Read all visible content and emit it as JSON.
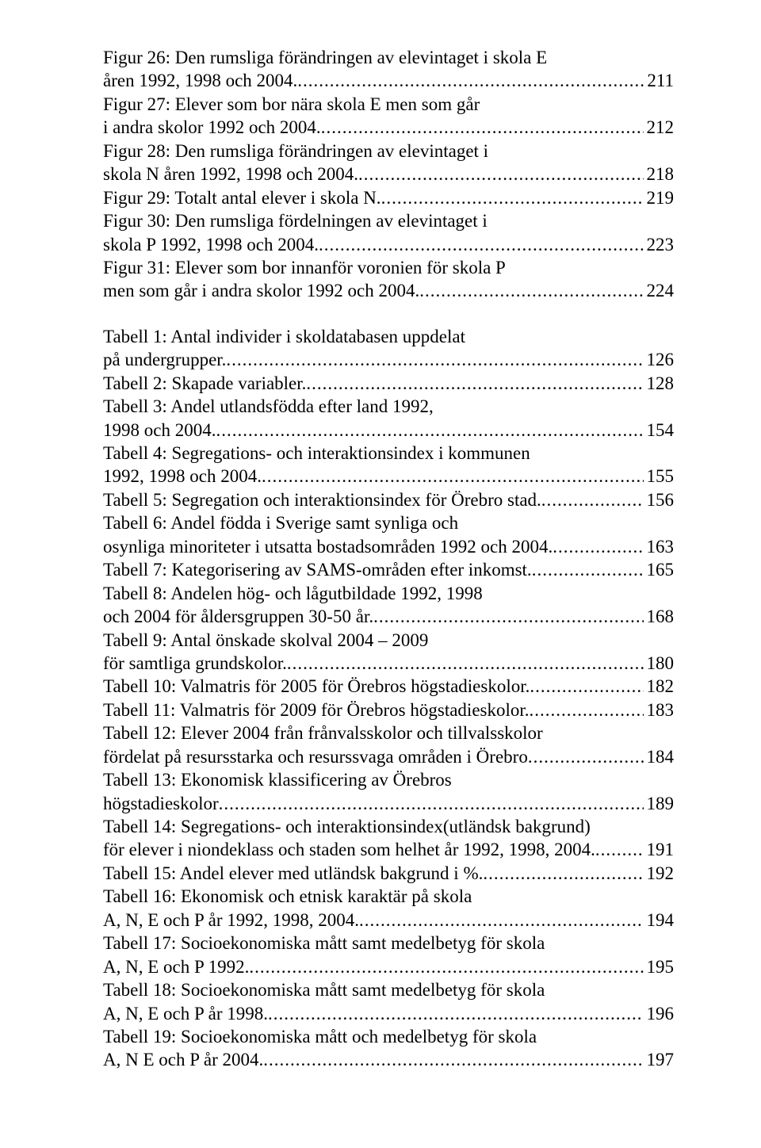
{
  "dots": "..............................................................................................................................",
  "entries": [
    {
      "lines": [
        "Figur 26: Den rumsliga förändringen av elevintaget i skola E",
        "åren 1992, 1998 och 2004."
      ],
      "page": "211"
    },
    {
      "lines": [
        "Figur 27: Elever som bor nära skola E men som går",
        "i andra skolor 1992 och 2004."
      ],
      "page": "212"
    },
    {
      "lines": [
        "Figur 28: Den rumsliga förändringen av elevintaget i",
        "skola N åren 1992, 1998 och 2004."
      ],
      "page": "218"
    },
    {
      "lines": [
        "Figur 29: Totalt antal elever i skola N."
      ],
      "page": "219"
    },
    {
      "lines": [
        "Figur 30: Den rumsliga fördelningen av elevintaget i",
        "skola P 1992, 1998 och 2004."
      ],
      "page": "223"
    },
    {
      "lines": [
        "Figur 31: Elever som bor innanför voronien för skola P",
        "men som går i andra skolor 1992 och 2004."
      ],
      "page": "224"
    },
    {
      "gap": true
    },
    {
      "lines": [
        "Tabell 1: Antal individer i skoldatabasen uppdelat",
        "på undergrupper."
      ],
      "page": "126"
    },
    {
      "lines": [
        "Tabell 2: Skapade variabler."
      ],
      "page": "128"
    },
    {
      "lines": [
        "Tabell 3: Andel utlandsfödda efter land 1992,",
        "1998 och 2004."
      ],
      "page": "154"
    },
    {
      "lines": [
        "Tabell 4: Segregations-  och interaktionsindex i kommunen",
        "1992, 1998 och 2004."
      ],
      "page": "155"
    },
    {
      "lines": [
        "Tabell 5: Segregation och interaktionsindex för Örebro stad. "
      ],
      "page": "156"
    },
    {
      "lines": [
        "Tabell 6: Andel födda i Sverige samt synliga och",
        "osynliga minoriteter i utsatta bostadsområden 1992 och 2004. "
      ],
      "page": "163"
    },
    {
      "lines": [
        "Tabell 7: Kategorisering av SAMS-områden efter inkomst."
      ],
      "page": "165"
    },
    {
      "lines": [
        "Tabell 8: Andelen hög- och lågutbildade 1992, 1998",
        "och 2004 för åldersgruppen 30-50 år."
      ],
      "page": "168"
    },
    {
      "lines": [
        "Tabell 9: Antal önskade skolval 2004 – 2009",
        "för samtliga grundskolor."
      ],
      "page": "180"
    },
    {
      "lines": [
        "Tabell 10: Valmatris för 2005 för Örebros högstadieskolor. "
      ],
      "page": "182"
    },
    {
      "lines": [
        "Tabell 11: Valmatris för 2009 för Örebros högstadieskolor. "
      ],
      "page": "183"
    },
    {
      "lines": [
        "Tabell 12: Elever 2004 från frånvalsskolor och tillvalsskolor",
        "fördelat på resursstarka och resurssvaga områden i Örebro "
      ],
      "page": "184"
    },
    {
      "lines": [
        "Tabell 13: Ekonomisk klassificering av Örebros",
        "högstadieskolor "
      ],
      "page": "189"
    },
    {
      "lines": [
        "Tabell 14: Segregations- och interaktionsindex(utländsk bakgrund)",
        "för elever i niondeklass och staden som helhet år 1992, 1998, 2004."
      ],
      "page": "191"
    },
    {
      "lines": [
        "Tabell 15: Andel elever med utländsk bakgrund i %."
      ],
      "page": "192"
    },
    {
      "lines": [
        "Tabell 16: Ekonomisk och etnisk karaktär på skola",
        "A, N, E och P år 1992, 1998, 2004."
      ],
      "page": "194"
    },
    {
      "lines": [
        "Tabell 17: Socioekonomiska mått samt medelbetyg för skola",
        "A, N, E och P 1992. "
      ],
      "page": "195"
    },
    {
      "lines": [
        "Tabell 18: Socioekonomiska mått samt medelbetyg för skola",
        "A, N, E och P år 1998. "
      ],
      "page": "196"
    },
    {
      "lines": [
        "Tabell 19: Socioekonomiska mått och medelbetyg för skola"
      ],
      "indentLast": true,
      "lastLine": " A, N E och P år 2004.",
      "page": "197"
    }
  ]
}
